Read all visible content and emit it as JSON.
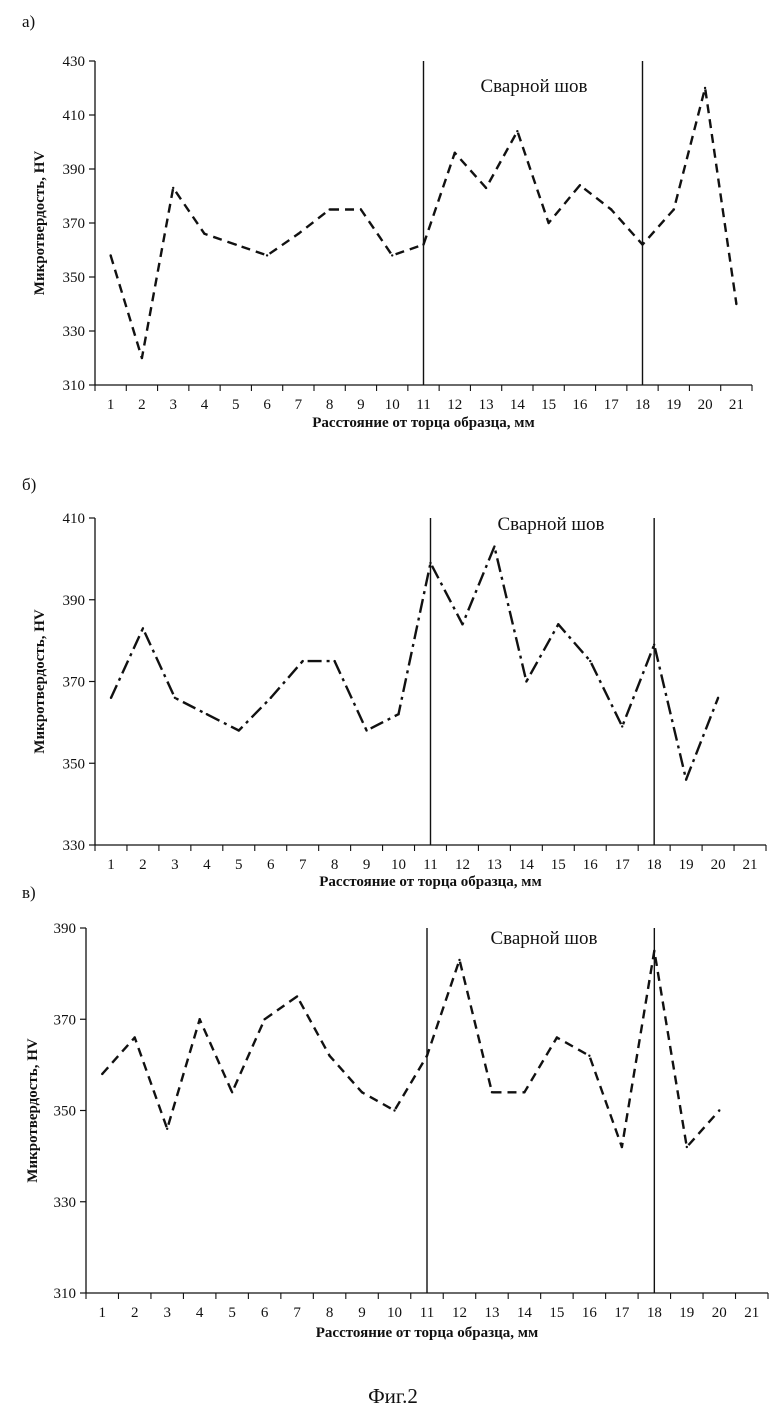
{
  "figure_caption": "Фиг.2",
  "chart_data": [
    {
      "panel_label": "а)",
      "type": "line",
      "xlabel": "Расстояние от торца образца, мм",
      "ylabel": "Микротвердость, HV",
      "annotation": "Сварной шов",
      "categories": [
        "1",
        "2",
        "3",
        "4",
        "5",
        "6",
        "7",
        "8",
        "9",
        "10",
        "11",
        "12",
        "13",
        "14",
        "15",
        "16",
        "17",
        "18",
        "19",
        "20",
        "21"
      ],
      "x": [
        1,
        2,
        3,
        4,
        5,
        6,
        7,
        8,
        9,
        10,
        11,
        12,
        13,
        14,
        15,
        16,
        17,
        18,
        19,
        20,
        21
      ],
      "ylim": [
        310,
        430
      ],
      "yticks": [
        310,
        330,
        350,
        370,
        390,
        410,
        430
      ],
      "series": [
        {
          "values": [
            358,
            320,
            383,
            366,
            362,
            358,
            366,
            375,
            375,
            358,
            362,
            396,
            383,
            404,
            370,
            384,
            375,
            362,
            375,
            420,
            340
          ],
          "line_style": "dashed"
        }
      ],
      "weld_boundaries_x": [
        11,
        18
      ],
      "grid": false,
      "color": "#111111"
    },
    {
      "panel_label": "б)",
      "type": "line",
      "xlabel": "Расстояние от торца образца, мм",
      "ylabel": "Микротвердость, HV",
      "annotation": "Сварной шов",
      "categories": [
        "1",
        "2",
        "3",
        "4",
        "5",
        "6",
        "7",
        "8",
        "9",
        "10",
        "11",
        "12",
        "13",
        "14",
        "15",
        "16",
        "17",
        "18",
        "19",
        "20",
        "21"
      ],
      "x": [
        1,
        2,
        3,
        4,
        5,
        6,
        7,
        8,
        9,
        10,
        11,
        12,
        13,
        14,
        15,
        16,
        17,
        18,
        19,
        20
      ],
      "ylim": [
        330,
        410
      ],
      "yticks": [
        330,
        350,
        370,
        390,
        410
      ],
      "series": [
        {
          "values": [
            366,
            383,
            366,
            362,
            358,
            366,
            375,
            375,
            358,
            362,
            399,
            384,
            403,
            370,
            384,
            375,
            359,
            379,
            346,
            366
          ],
          "line_style": "dash-dot"
        }
      ],
      "weld_boundaries_x": [
        11,
        18
      ],
      "grid": false,
      "color": "#111111"
    },
    {
      "panel_label": "в)",
      "type": "line",
      "xlabel": "Расстояние от торца образца, мм",
      "ylabel": "Микротвердость, HV",
      "annotation": "Сварной шов",
      "categories": [
        "1",
        "2",
        "3",
        "4",
        "5",
        "6",
        "7",
        "8",
        "9",
        "10",
        "11",
        "12",
        "13",
        "14",
        "15",
        "16",
        "17",
        "18",
        "19",
        "20",
        "21"
      ],
      "x": [
        1,
        2,
        3,
        4,
        5,
        6,
        7,
        8,
        9,
        10,
        11,
        12,
        13,
        14,
        15,
        16,
        17,
        18,
        19,
        20
      ],
      "ylim": [
        310,
        390
      ],
      "yticks": [
        310,
        330,
        350,
        370,
        390
      ],
      "series": [
        {
          "values": [
            358,
            366,
            346,
            370,
            354,
            370,
            375,
            362,
            354,
            350,
            362,
            383,
            354,
            354,
            366,
            362,
            342,
            385,
            342,
            350
          ],
          "line_style": "dashed"
        }
      ],
      "weld_boundaries_x": [
        11,
        18
      ],
      "grid": false,
      "color": "#111111"
    }
  ]
}
